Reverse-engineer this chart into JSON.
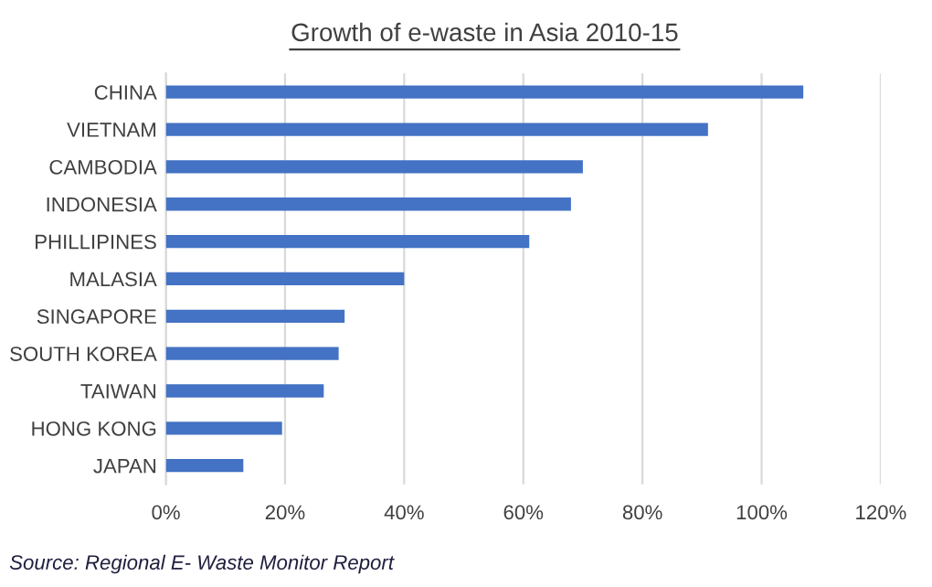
{
  "chart_data": {
    "type": "bar",
    "orientation": "horizontal",
    "title": "Growth of e-waste in Asia 2010-15",
    "categories": [
      "CHINA",
      "VIETNAM",
      "CAMBODIA",
      "INDONESIA",
      "PHILLIPINES",
      "MALASIA",
      "SINGAPORE",
      "SOUTH KOREA",
      "TAIWAN",
      "HONG KONG",
      "JAPAN"
    ],
    "values": [
      107,
      91,
      70,
      68,
      61,
      40,
      30,
      29,
      26.5,
      19.5,
      13
    ],
    "color": "#4472c4",
    "xlim": [
      0,
      120
    ],
    "xticks": [
      {
        "value": 0,
        "label": "0%"
      },
      {
        "value": 20,
        "label": "20%"
      },
      {
        "value": 40,
        "label": "40%"
      },
      {
        "value": 60,
        "label": "60%"
      },
      {
        "value": 80,
        "label": "80%"
      },
      {
        "value": 100,
        "label": "100%"
      },
      {
        "value": 120,
        "label": "120%"
      }
    ],
    "grid": "x",
    "annotations": [
      "Source: Regional E- Waste Monitor Report"
    ]
  }
}
